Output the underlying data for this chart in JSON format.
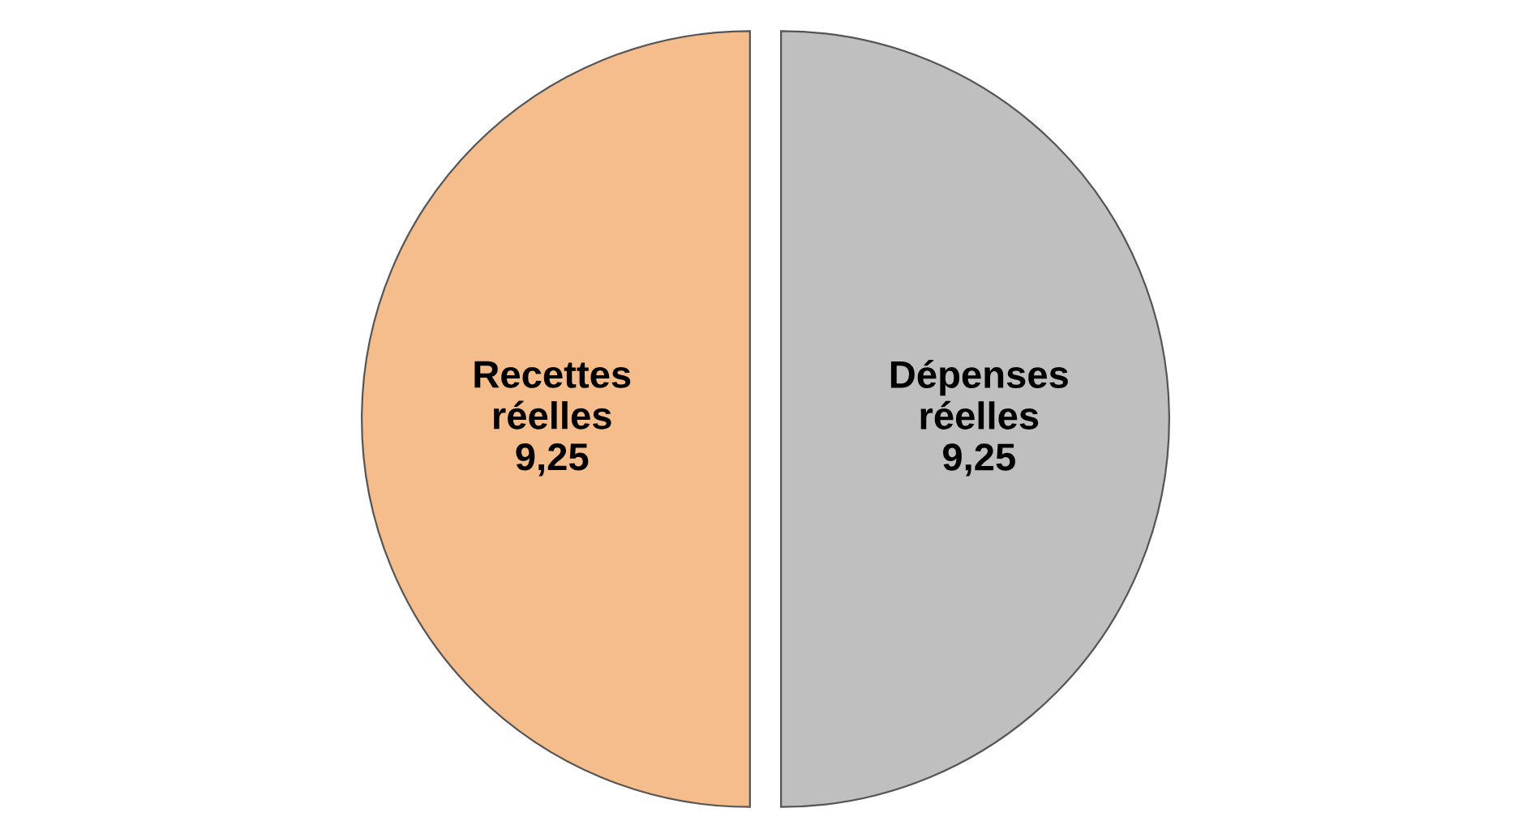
{
  "chart_data": {
    "type": "pie",
    "categories": [
      "Recettes réelles",
      "Dépenses réelles"
    ],
    "values": [
      9.25,
      9.25
    ],
    "value_labels": [
      "9,25",
      "9,25"
    ],
    "colors": [
      "#f5bc8c",
      "#bfbfbf"
    ]
  }
}
